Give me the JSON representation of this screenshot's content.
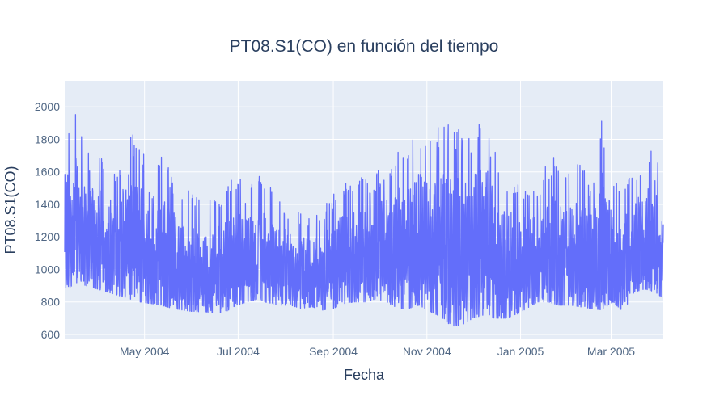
{
  "chart_data": {
    "type": "line",
    "title": "PT08.S1(CO) en función del tiempo",
    "xlabel": "Fecha",
    "ylabel": "PT08.S1(CO)",
    "x_range": [
      "2004-03-10",
      "2005-04-04"
    ],
    "y_range": [
      570,
      2160
    ],
    "x_ticks": [
      {
        "date": "2004-05-01",
        "label": "May 2004"
      },
      {
        "date": "2004-07-01",
        "label": "Jul 2004"
      },
      {
        "date": "2004-09-01",
        "label": "Sep 2004"
      },
      {
        "date": "2004-11-01",
        "label": "Nov 2004"
      },
      {
        "date": "2005-01-01",
        "label": "Jan 2005"
      },
      {
        "date": "2005-03-01",
        "label": "Mar 2005"
      }
    ],
    "y_ticks": [
      600,
      800,
      1000,
      1200,
      1400,
      1600,
      1800,
      2000
    ],
    "grid": true,
    "colors": {
      "series": "#636efa",
      "plot_bg": "#e5ecf6",
      "grid": "#ffffff",
      "text": "#2a3f5f",
      "tick_text": "#506784"
    },
    "series": [
      {
        "x": [
          "2004-03-10",
          "2004-03-17",
          "2004-03-24",
          "2004-03-31",
          "2004-04-07",
          "2004-04-14",
          "2004-04-21",
          "2004-04-28",
          "2004-05-05",
          "2004-05-12",
          "2004-05-19",
          "2004-05-26",
          "2004-06-02",
          "2004-06-09",
          "2004-06-16",
          "2004-06-23",
          "2004-06-30",
          "2004-07-07",
          "2004-07-14",
          "2004-07-21",
          "2004-07-28",
          "2004-08-04",
          "2004-08-11",
          "2004-08-18",
          "2004-08-25",
          "2004-09-01",
          "2004-09-08",
          "2004-09-15",
          "2004-09-22",
          "2004-09-29",
          "2004-10-06",
          "2004-10-13",
          "2004-10-20",
          "2004-10-27",
          "2004-11-03",
          "2004-11-10",
          "2004-11-17",
          "2004-11-24",
          "2004-12-01",
          "2004-12-08",
          "2004-12-15",
          "2004-12-22",
          "2004-12-29",
          "2005-01-05",
          "2005-01-12",
          "2005-01-19",
          "2005-01-26",
          "2005-02-02",
          "2005-02-09",
          "2005-02-16",
          "2005-02-23",
          "2005-03-02",
          "2005-03-09",
          "2005-03-16",
          "2005-03-23",
          "2005-03-30",
          "2005-04-04"
        ],
        "upper": [
          1840,
          2040,
          1720,
          1740,
          1660,
          1640,
          1870,
          1760,
          1740,
          1720,
          1580,
          1500,
          1480,
          1440,
          1440,
          1520,
          1620,
          1480,
          1600,
          1520,
          1440,
          1380,
          1360,
          1320,
          1380,
          1460,
          1540,
          1580,
          1560,
          1600,
          1680,
          1760,
          1780,
          1880,
          1860,
          1900,
          1920,
          1880,
          1860,
          2070,
          1740,
          1600,
          1560,
          1540,
          1520,
          1680,
          1700,
          1640,
          1700,
          1540,
          1940,
          1520,
          1560,
          1600,
          1720,
          1810,
          1540
        ],
        "lower": [
          860,
          920,
          900,
          880,
          860,
          840,
          820,
          800,
          790,
          780,
          760,
          750,
          740,
          740,
          730,
          740,
          780,
          800,
          820,
          790,
          780,
          780,
          760,
          770,
          750,
          760,
          790,
          800,
          800,
          820,
          800,
          760,
          760,
          780,
          740,
          710,
          650,
          660,
          700,
          720,
          700,
          700,
          720,
          760,
          800,
          800,
          780,
          780,
          770,
          760,
          750,
          800,
          740,
          860,
          880,
          860,
          820
        ]
      }
    ]
  }
}
